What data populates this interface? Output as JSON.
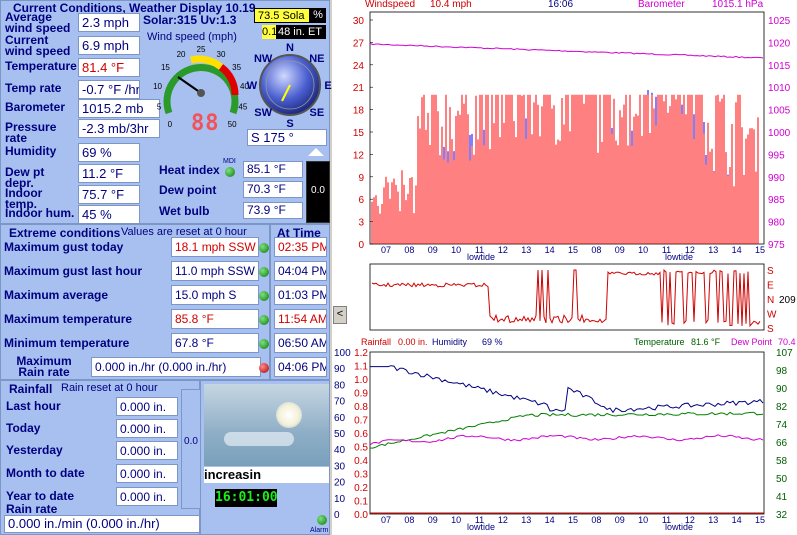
{
  "current": {
    "title": "Current Conditions, Weather Display 10.19",
    "rows": [
      {
        "label": "Average wind speed",
        "value": "2.3 mph"
      },
      {
        "label": "Current wind speed",
        "value": "6.9 mph"
      },
      {
        "label": "Temperature",
        "value": "81.4 °F"
      },
      {
        "label": "Temp rate",
        "value": "-0.7 °F /hr"
      },
      {
        "label": "Barometer",
        "value": "1015.2 mb"
      },
      {
        "label": "Pressure rate",
        "value": "-2.3 mb/3hr"
      },
      {
        "label": "Humidity",
        "value": "69 %"
      },
      {
        "label": "Dew pt depr.",
        "value": "11.2 °F"
      },
      {
        "label": "Indoor temp.",
        "value": "75.7 °F"
      },
      {
        "label": "Indoor hum.",
        "value": "45 %"
      }
    ],
    "solar_uv": "Solar:315 Uv:1.3",
    "solar_box": "73.5 Sola",
    "solar_pct": "%",
    "et_left": "0.1",
    "et_right": "48 in. ET",
    "wind_gauge_title": "Wind speed (mph)",
    "gauge_ticks": [
      "0",
      "5",
      "10",
      "15",
      "20",
      "25",
      "30",
      "35",
      "40",
      "45",
      "50"
    ],
    "gauge_digital": "88",
    "wind_dir": "S  175 °",
    "compass": [
      "N",
      "NE",
      "E",
      "SE",
      "S",
      "SW",
      "W",
      "NW"
    ],
    "heat_index_label": "Heat index",
    "heat_index": "85.1 °F",
    "mdi": "MDI",
    "dew_point_label": "Dew point",
    "dew_point": "70.3 °F",
    "wet_bulb_label": "Wet bulb",
    "wet_bulb": "73.9 °F",
    "vert_meter": "0.0"
  },
  "extreme": {
    "title": "Extreme conditions",
    "note": "Values are reset at 0 hour",
    "at_time": "At Time",
    "rows": [
      {
        "label": "Maximum gust today",
        "value": "18.1 mph SSW",
        "time": "02:35 PM",
        "red": true
      },
      {
        "label": "Maximum gust last hour",
        "value": "11.0 mph SSW",
        "time": "04:04 PM",
        "red": false
      },
      {
        "label": "Maximum average",
        "value": "15.0 mph S",
        "time": "01:03 PM",
        "red": false
      },
      {
        "label": "Maximum temperature",
        "value": "85.8 °F",
        "time": "11:54 AM",
        "red": true
      },
      {
        "label": "Minimum temperature",
        "value": "67.8 °F",
        "time": "06:50 AM",
        "red": false
      },
      {
        "label": "Maximum Rain rate",
        "value": "0.000 in./hr (0.000 in./hr)",
        "time": "04:06 PM",
        "red": false
      }
    ]
  },
  "rainfall": {
    "title": "Rainfall",
    "note": "Rain reset at 0 hour",
    "rows": [
      {
        "label": "Last hour",
        "value": "0.000 in."
      },
      {
        "label": "Today",
        "value": "0.000 in."
      },
      {
        "label": "Yesterday",
        "value": "0.000 in."
      },
      {
        "label": "Month to date",
        "value": "0.000 in."
      },
      {
        "label": "Year to date",
        "value": "0.000 in."
      }
    ],
    "rate_label": "Rain rate",
    "rate_value": "0.000 in./min (0.000 in./hr)",
    "meter": "0.0",
    "forecast": "increasin",
    "clock": "16:01:00",
    "alarm": "Alarm"
  },
  "graph1": {
    "label_wind": "Windspeed",
    "wind_value": "10.4 mph",
    "time": "16:06",
    "label_baro": "Barometer",
    "baro_value": "1015.1 hPa",
    "y_left": [
      "0",
      "3",
      "6",
      "9",
      "12",
      "15",
      "18",
      "21",
      "24",
      "27",
      "30"
    ],
    "y_right": [
      "975",
      "980",
      "985",
      "990",
      "995",
      "1000",
      "1005",
      "1010",
      "1015",
      "1020",
      "1025"
    ],
    "x_labels": [
      "07",
      "08",
      "09",
      "10",
      "11",
      "12",
      "13",
      "14",
      "15",
      "08",
      "09",
      "10",
      "11",
      "12",
      "13",
      "14",
      "15"
    ],
    "lowtide": "lowtide"
  },
  "graph2": {
    "dir_labels": [
      "S",
      "E",
      "N",
      "W",
      "S"
    ],
    "dir_value": "209"
  },
  "graph3": {
    "rainfall_label": "Rainfall",
    "rainfall_value": "0.00 in.",
    "humidity_label": "Humidity",
    "humidity_value": "69 %",
    "temp_label": "Temperature",
    "temp_value": "81.6 °F",
    "dew_label": "Dew Point",
    "dew_value": "70.4",
    "y_left_hum": [
      "0",
      "10",
      "20",
      "30",
      "40",
      "50",
      "60",
      "70",
      "80",
      "90",
      "100"
    ],
    "y_left_rain": [
      "0.0",
      "0.1",
      "0.2",
      "0.3",
      "0.4",
      "0.5",
      "0.6",
      "0.7",
      "0.8",
      "0.9",
      "1.0",
      "1.1",
      "1.2"
    ],
    "y_right": [
      "32",
      "41",
      "50",
      "58",
      "66",
      "74",
      "82",
      "90",
      "98",
      "107"
    ],
    "x_labels": [
      "07",
      "08",
      "09",
      "10",
      "11",
      "12",
      "13",
      "14",
      "15",
      "08",
      "09",
      "10",
      "11",
      "12",
      "13",
      "14",
      "15"
    ],
    "lowtide": "lowtide"
  },
  "scroll_left": "<",
  "colors": {
    "panel": "#a8c0f0",
    "label": "#000080",
    "red": "#d00000",
    "wind": "#ff0000",
    "gust": "#0000ff",
    "avg": "#008000",
    "baro": "#d000d0"
  }
}
